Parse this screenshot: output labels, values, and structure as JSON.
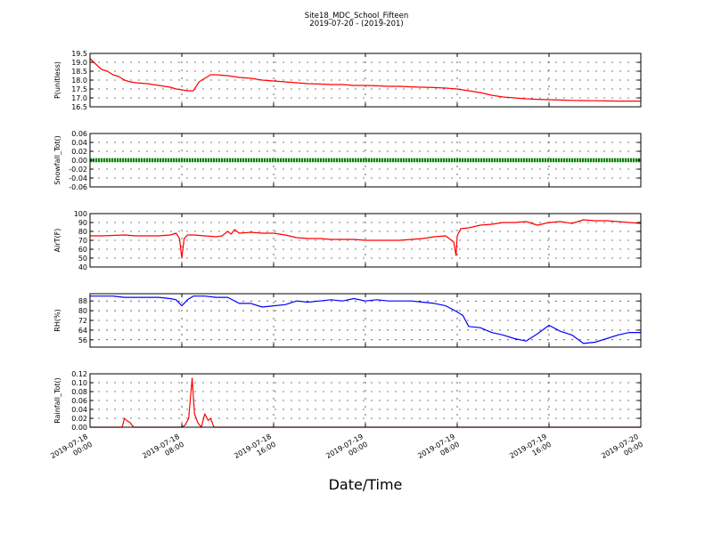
{
  "figure": {
    "title": "Site18_MDC_School_Fifteen",
    "subtitle": "2019-07-20 - (2019-201)",
    "xlabel": "Date/Time"
  },
  "chart_data": [
    {
      "type": "line",
      "ylabel": "P(unitless)",
      "ylim": [
        16.5,
        19.5
      ],
      "yticks": [
        "19.5",
        "19.0",
        "18.5",
        "18.0",
        "17.5",
        "17.0",
        "16.5"
      ],
      "ytick_values": [
        19.5,
        19.0,
        18.5,
        18.0,
        17.5,
        17.0,
        16.5
      ],
      "xlim": [
        0,
        48
      ],
      "grid": true,
      "series": [
        {
          "color": "#ff0000",
          "x": [
            0,
            0.5,
            1,
            1.5,
            2,
            2.5,
            3,
            3.5,
            4,
            5,
            6,
            6.5,
            7,
            7.5,
            8,
            8.5,
            9,
            9.5,
            10,
            10.5,
            11,
            12,
            13,
            14,
            15,
            16,
            17,
            18,
            19,
            20,
            21,
            22,
            23,
            24,
            25,
            26,
            27,
            28,
            29,
            30,
            31,
            32,
            32.5,
            33,
            34,
            35,
            36,
            37,
            38,
            39,
            40,
            41,
            42,
            43,
            44,
            45,
            46,
            47,
            48
          ],
          "y": [
            19.2,
            18.9,
            18.6,
            18.5,
            18.3,
            18.2,
            18.0,
            17.9,
            17.85,
            17.8,
            17.7,
            17.65,
            17.6,
            17.5,
            17.45,
            17.4,
            17.4,
            17.9,
            18.1,
            18.3,
            18.3,
            18.25,
            18.15,
            18.1,
            18.0,
            17.95,
            17.9,
            17.85,
            17.8,
            17.78,
            17.75,
            17.75,
            17.7,
            17.7,
            17.68,
            17.65,
            17.65,
            17.62,
            17.6,
            17.58,
            17.55,
            17.5,
            17.45,
            17.4,
            17.3,
            17.15,
            17.05,
            17.0,
            16.95,
            16.92,
            16.9,
            16.88,
            16.86,
            16.85,
            16.84,
            16.83,
            16.82,
            16.82,
            16.82
          ]
        }
      ]
    },
    {
      "type": "scatter",
      "ylabel": "Snowfall_Tot()",
      "ylim": [
        -0.06,
        0.06
      ],
      "yticks": [
        "0.06",
        "0.04",
        "0.02",
        "0.00",
        "-0.02",
        "-0.04",
        "-0.06"
      ],
      "ytick_values": [
        0.06,
        0.04,
        0.02,
        0.0,
        -0.02,
        -0.04,
        -0.06
      ],
      "xlim": [
        0,
        48
      ],
      "grid": true,
      "series": [
        {
          "color": "#008000",
          "x": [
            0,
            48
          ],
          "y": [
            0,
            0
          ]
        }
      ]
    },
    {
      "type": "line",
      "ylabel": "AirT(F)",
      "ylim": [
        40,
        100
      ],
      "yticks": [
        "100",
        "90",
        "80",
        "70",
        "60",
        "50",
        "40"
      ],
      "ytick_values": [
        100,
        90,
        80,
        70,
        60,
        50,
        40
      ],
      "xlim": [
        0,
        48
      ],
      "grid": true,
      "series": [
        {
          "color": "#ff0000",
          "x": [
            0,
            1,
            2,
            3,
            4,
            5,
            6,
            7,
            7.5,
            7.8,
            8,
            8.2,
            8.5,
            9,
            10,
            11,
            11.5,
            12,
            12.3,
            12.6,
            13,
            14,
            15,
            16,
            17,
            18,
            19,
            20,
            21,
            22,
            23,
            24,
            25,
            26,
            27,
            28,
            29,
            30,
            31,
            31.7,
            31.9,
            32,
            32.3,
            33,
            34,
            35,
            36,
            37,
            38,
            39,
            40,
            41,
            42,
            43,
            44,
            45,
            46,
            47,
            48
          ],
          "y": [
            75,
            75,
            75.5,
            76,
            75,
            75,
            75,
            76,
            78,
            72,
            50,
            72,
            76,
            76,
            75,
            74,
            75,
            80,
            77,
            82,
            78,
            79,
            78,
            78,
            76,
            73,
            72,
            72,
            71,
            71,
            71,
            70,
            70,
            70,
            70,
            71,
            72,
            74,
            75,
            68,
            53,
            75,
            83,
            84,
            87,
            88,
            90,
            90,
            91,
            87,
            90,
            91,
            89,
            93,
            92,
            92,
            91,
            90,
            89
          ]
        }
      ]
    },
    {
      "type": "line",
      "ylabel": "RH(%)",
      "ylim": [
        50,
        94
      ],
      "yticks": [
        "88",
        "80",
        "72",
        "64",
        "56"
      ],
      "ytick_values": [
        88,
        80,
        72,
        64,
        56
      ],
      "xlim": [
        0,
        48
      ],
      "grid": true,
      "series": [
        {
          "color": "#0000ff",
          "x": [
            0,
            1,
            2,
            3,
            4,
            5,
            6,
            7,
            7.5,
            8,
            8.5,
            9,
            10,
            11,
            12,
            13,
            14,
            15,
            16,
            17,
            18,
            19,
            20,
            21,
            22,
            23,
            24,
            25,
            26,
            27,
            28,
            29,
            30,
            31,
            32,
            32.5,
            33,
            34,
            35,
            36,
            37,
            38,
            39,
            40,
            41,
            42,
            43,
            44,
            45,
            46,
            47,
            48
          ],
          "y": [
            92,
            92,
            92,
            91,
            91,
            91,
            91,
            90,
            89,
            84,
            89,
            92,
            92,
            91,
            91,
            86,
            86,
            83,
            84,
            85,
            88,
            87,
            88,
            89,
            88,
            90,
            88,
            89,
            88,
            88,
            88,
            87,
            86,
            84,
            79,
            76,
            67,
            66,
            62,
            60,
            57,
            55,
            61,
            68,
            63,
            60,
            53,
            54,
            57,
            60,
            62,
            62
          ]
        }
      ]
    },
    {
      "type": "line",
      "ylabel": "Rainfall_Tot()",
      "ylim": [
        0.0,
        0.12
      ],
      "yticks": [
        "0.12",
        "0.10",
        "0.08",
        "0.06",
        "0.04",
        "0.02",
        "0.00"
      ],
      "ytick_values": [
        0.12,
        0.1,
        0.08,
        0.06,
        0.04,
        0.02,
        0.0
      ],
      "xlim": [
        0,
        48
      ],
      "grid": true,
      "xticks": [
        {
          "date": "2019-07-18",
          "time": "00:00",
          "x": 0
        },
        {
          "date": "2019-07-18",
          "time": "08:00",
          "x": 8
        },
        {
          "date": "2019-07-18",
          "time": "16:00",
          "x": 16
        },
        {
          "date": "2019-07-19",
          "time": "00:00",
          "x": 24
        },
        {
          "date": "2019-07-19",
          "time": "08:00",
          "x": 32
        },
        {
          "date": "2019-07-19",
          "time": "16:00",
          "x": 40
        },
        {
          "date": "2019-07-20",
          "time": "00:00",
          "x": 48
        }
      ],
      "series": [
        {
          "color": "#ff0000",
          "x": [
            0,
            2.8,
            3.0,
            3.2,
            3.5,
            3.8,
            8,
            8.3,
            8.6,
            8.9,
            9.1,
            9.4,
            9.7,
            10,
            10.3,
            10.5,
            10.8,
            11,
            48
          ],
          "y": [
            0,
            0,
            0.02,
            0.015,
            0.01,
            0,
            0,
            0.005,
            0.02,
            0.11,
            0.03,
            0.01,
            0,
            0.03,
            0.015,
            0.02,
            0,
            0,
            0
          ]
        }
      ]
    }
  ]
}
